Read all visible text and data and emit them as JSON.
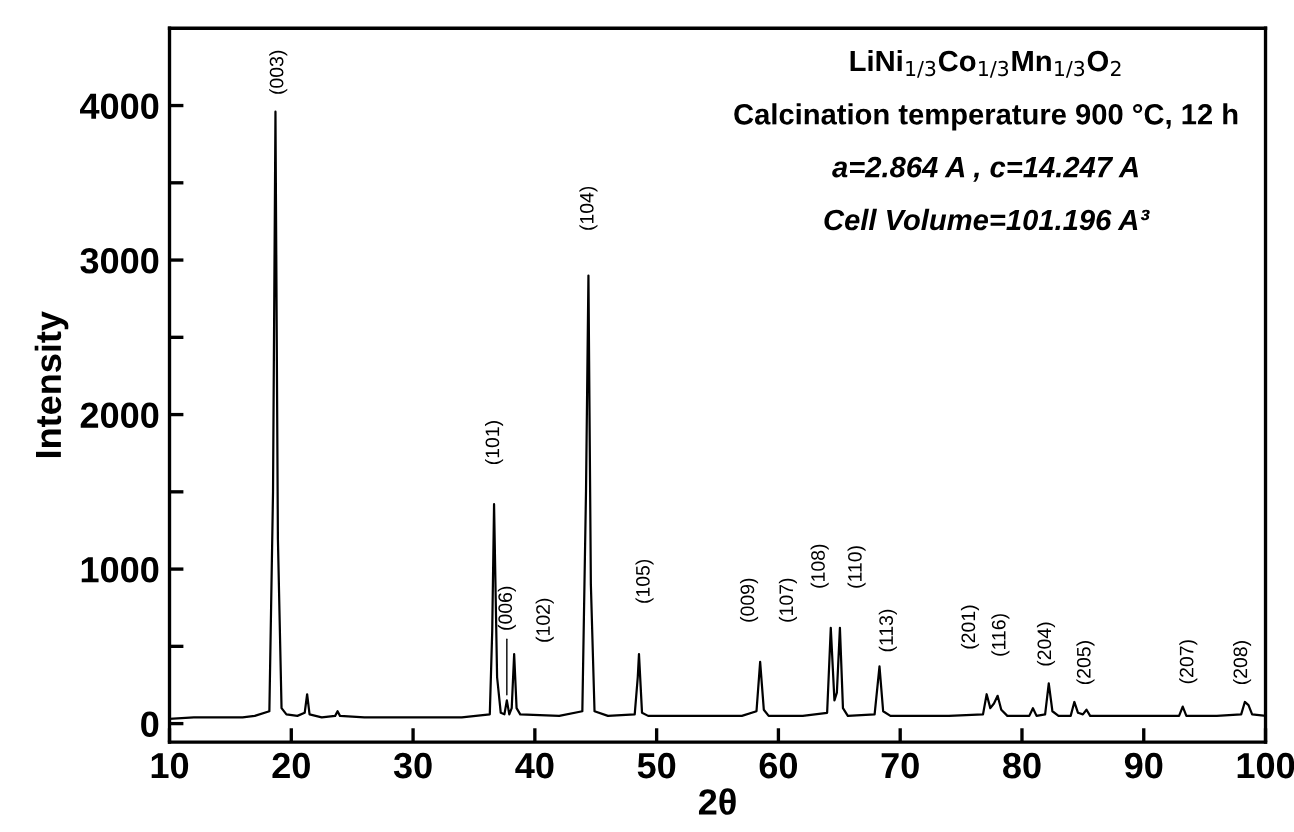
{
  "chart_data": {
    "type": "line",
    "xlabel": "2θ",
    "ylabel": "Intensity",
    "xlim": [
      10,
      100
    ],
    "xticks": [
      10,
      20,
      30,
      40,
      50,
      60,
      70,
      80,
      90,
      100
    ],
    "ylim": [
      -120,
      4500
    ],
    "yticks": [
      0,
      {
        "value": 500,
        "label": null
      },
      1000,
      {
        "value": 1500,
        "label": null
      },
      2000,
      {
        "value": 2500,
        "label": null
      },
      3000,
      {
        "value": 3500,
        "label": null
      },
      4000
    ],
    "grid": false,
    "marker": "none",
    "line_style": "solid",
    "x": [
      10,
      12,
      14,
      16,
      17,
      18.2,
      18.5,
      18.7,
      18.9,
      19.2,
      19.6,
      20.5,
      21.1,
      21.3,
      21.5,
      22.5,
      23.6,
      23.8,
      24.0,
      26,
      30,
      34,
      36.3,
      36.5,
      36.65,
      36.9,
      37.2,
      37.5,
      37.7,
      37.9,
      38.1,
      38.3,
      38.5,
      38.8,
      42,
      43.9,
      44.2,
      44.4,
      44.6,
      44.9,
      46,
      48.2,
      48.45,
      48.55,
      48.8,
      49.3,
      53,
      57,
      58.2,
      58.5,
      58.8,
      59.2,
      62,
      64.0,
      64.3,
      64.6,
      64.8,
      65.05,
      65.3,
      65.7,
      67.9,
      68.3,
      68.6,
      69.2,
      74,
      76.8,
      77.1,
      77.4,
      77.7,
      78.0,
      78.3,
      78.8,
      80.6,
      80.9,
      81.2,
      81.9,
      82.2,
      82.5,
      83,
      84.0,
      84.3,
      84.6,
      85.0,
      85.3,
      85.6,
      88,
      92.9,
      93.2,
      93.5,
      96,
      98.0,
      98.3,
      98.6,
      98.9,
      100
    ],
    "series": [
      {
        "color": "#000000",
        "values": [
          30,
          40,
          40,
          40,
          50,
          80,
          1500,
          3960,
          1200,
          100,
          60,
          50,
          70,
          190,
          60,
          40,
          50,
          80,
          50,
          40,
          40,
          40,
          60,
          600,
          1420,
          300,
          70,
          60,
          150,
          60,
          100,
          450,
          100,
          60,
          50,
          80,
          1500,
          2900,
          900,
          80,
          50,
          60,
          300,
          450,
          70,
          50,
          50,
          50,
          80,
          400,
          90,
          50,
          50,
          70,
          620,
          150,
          200,
          620,
          100,
          50,
          60,
          370,
          80,
          50,
          50,
          60,
          190,
          100,
          130,
          180,
          90,
          50,
          50,
          100,
          50,
          60,
          260,
          80,
          50,
          50,
          140,
          70,
          60,
          90,
          50,
          50,
          50,
          110,
          50,
          50,
          60,
          140,
          120,
          60,
          50
        ]
      }
    ],
    "annotations": [
      "LiNi$_{1/3}$Co$_{1/3}$Mn$_{1/3}$O$_{2}$",
      "Calcination temperature 900 °C, 12 h",
      "a=2.864 A , c=14.247 A",
      "Cell Volume=101.196 A³",
      {
        "text": "(003)",
        "x": 18.7,
        "y": 3960
      },
      {
        "text": "(104)",
        "x": 44.4,
        "y": 2900
      },
      {
        "text": "(101)",
        "x": 36.65,
        "y": 1420
      },
      {
        "text": "(006)",
        "x": 37.7,
        "y": 150
      },
      {
        "text": "(102)",
        "x": 38.3,
        "y": 450
      },
      {
        "text": "(105)",
        "x": 48.55,
        "y": 450
      },
      {
        "text": "(009)",
        "x": 58.5,
        "y": 400
      },
      {
        "text": "(107)",
        "x": 58.5,
        "y": 400
      },
      {
        "text": "(108)",
        "x": 64.3,
        "y": 620
      },
      {
        "text": "(110)",
        "x": 65.05,
        "y": 620
      },
      {
        "text": "(113)",
        "x": 68.3,
        "y": 370
      },
      {
        "text": "(201)",
        "x": 77.1,
        "y": 190
      },
      {
        "text": "(116)",
        "x": 78.0,
        "y": 180
      },
      {
        "text": "(204)",
        "x": 82.2,
        "y": 260
      },
      {
        "text": "(205)",
        "x": 84.3,
        "y": 140
      },
      {
        "text": "(207)",
        "x": 93.2,
        "y": 110
      },
      {
        "text": "(208)",
        "x": 98.3,
        "y": 140
      }
    ]
  }
}
